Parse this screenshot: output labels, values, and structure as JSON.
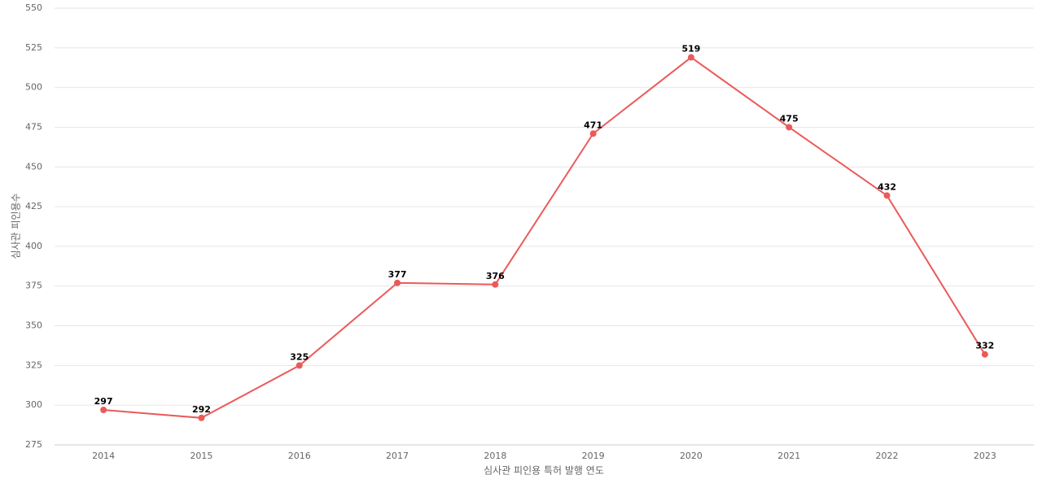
{
  "chart_data": {
    "type": "line",
    "x_label": "심사관 피인용 특허 발행 연도",
    "y_label": "심사관 피인용수",
    "categories": [
      "2014",
      "2015",
      "2016",
      "2017",
      "2018",
      "2019",
      "2020",
      "2021",
      "2022",
      "2023"
    ],
    "series": [
      {
        "name": "심사관 피인용수",
        "color": "#eb5a5a",
        "values": [
          297,
          292,
          325,
          377,
          376,
          471,
          519,
          475,
          432,
          332
        ]
      }
    ],
    "ylim": [
      275,
      550
    ],
    "yticks": [
      275,
      300,
      325,
      350,
      375,
      400,
      425,
      450,
      475,
      500,
      525,
      550
    ],
    "grid": true
  }
}
